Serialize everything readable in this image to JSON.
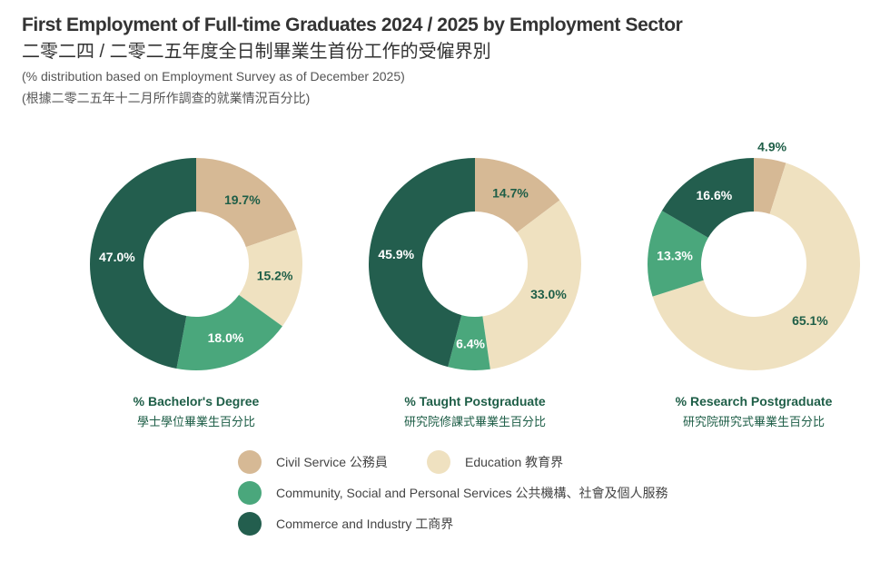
{
  "header": {
    "title_en": "First Employment of Full-time Graduates 2024 / 2025 by Employment Sector",
    "title_zh": "二零二四 / 二零二五年度全日制畢業生首份工作的受僱界別",
    "subtitle_en": "(% distribution based on Employment Survey as of December 2025)",
    "subtitle_zh": "(根據二零二五年十二月所作調查的就業情況百分比)"
  },
  "chart_data": [
    {
      "type": "pie",
      "donut": true,
      "title": "% Bachelor's Degree",
      "title_zh": "學士學位畢業生百分比",
      "categories": [
        "Civil Service",
        "Education",
        "Community, Social and Personal Services",
        "Commerce and Industry"
      ],
      "values": [
        19.7,
        15.2,
        18.0,
        47.0
      ],
      "labels": [
        "19.7%",
        "15.2%",
        "18.0%",
        "47.0%"
      ]
    },
    {
      "type": "pie",
      "donut": true,
      "title": "% Taught Postgraduate",
      "title_zh": "研究院修課式畢業生百分比",
      "categories": [
        "Civil Service",
        "Education",
        "Community, Social and Personal Services",
        "Commerce and Industry"
      ],
      "values": [
        14.7,
        33.0,
        6.4,
        45.9
      ],
      "labels": [
        "14.7%",
        "33.0%",
        "6.4%",
        "45.9%"
      ]
    },
    {
      "type": "pie",
      "donut": true,
      "title": "% Research Postgraduate",
      "title_zh": "研究院研究式畢業生百分比",
      "categories": [
        "Civil Service",
        "Education",
        "Community, Social and Personal Services",
        "Commerce and Industry"
      ],
      "values": [
        4.9,
        65.1,
        13.3,
        16.6
      ],
      "labels": [
        "4.9%",
        "65.1%",
        "13.3%",
        "16.6%"
      ]
    }
  ],
  "legend": [
    {
      "label": "Civil Service 公務員",
      "color": "#d6b995"
    },
    {
      "label": "Education 教育界",
      "color": "#efe1c0"
    },
    {
      "label": "Community, Social and Personal Services 公共機構、社會及個人服務",
      "color": "#4aa77c"
    },
    {
      "label": "Commerce and Industry 工商界",
      "color": "#235e4e"
    }
  ],
  "label_colors": {
    "dark": "#1e5e47",
    "light": "#ffffff"
  }
}
